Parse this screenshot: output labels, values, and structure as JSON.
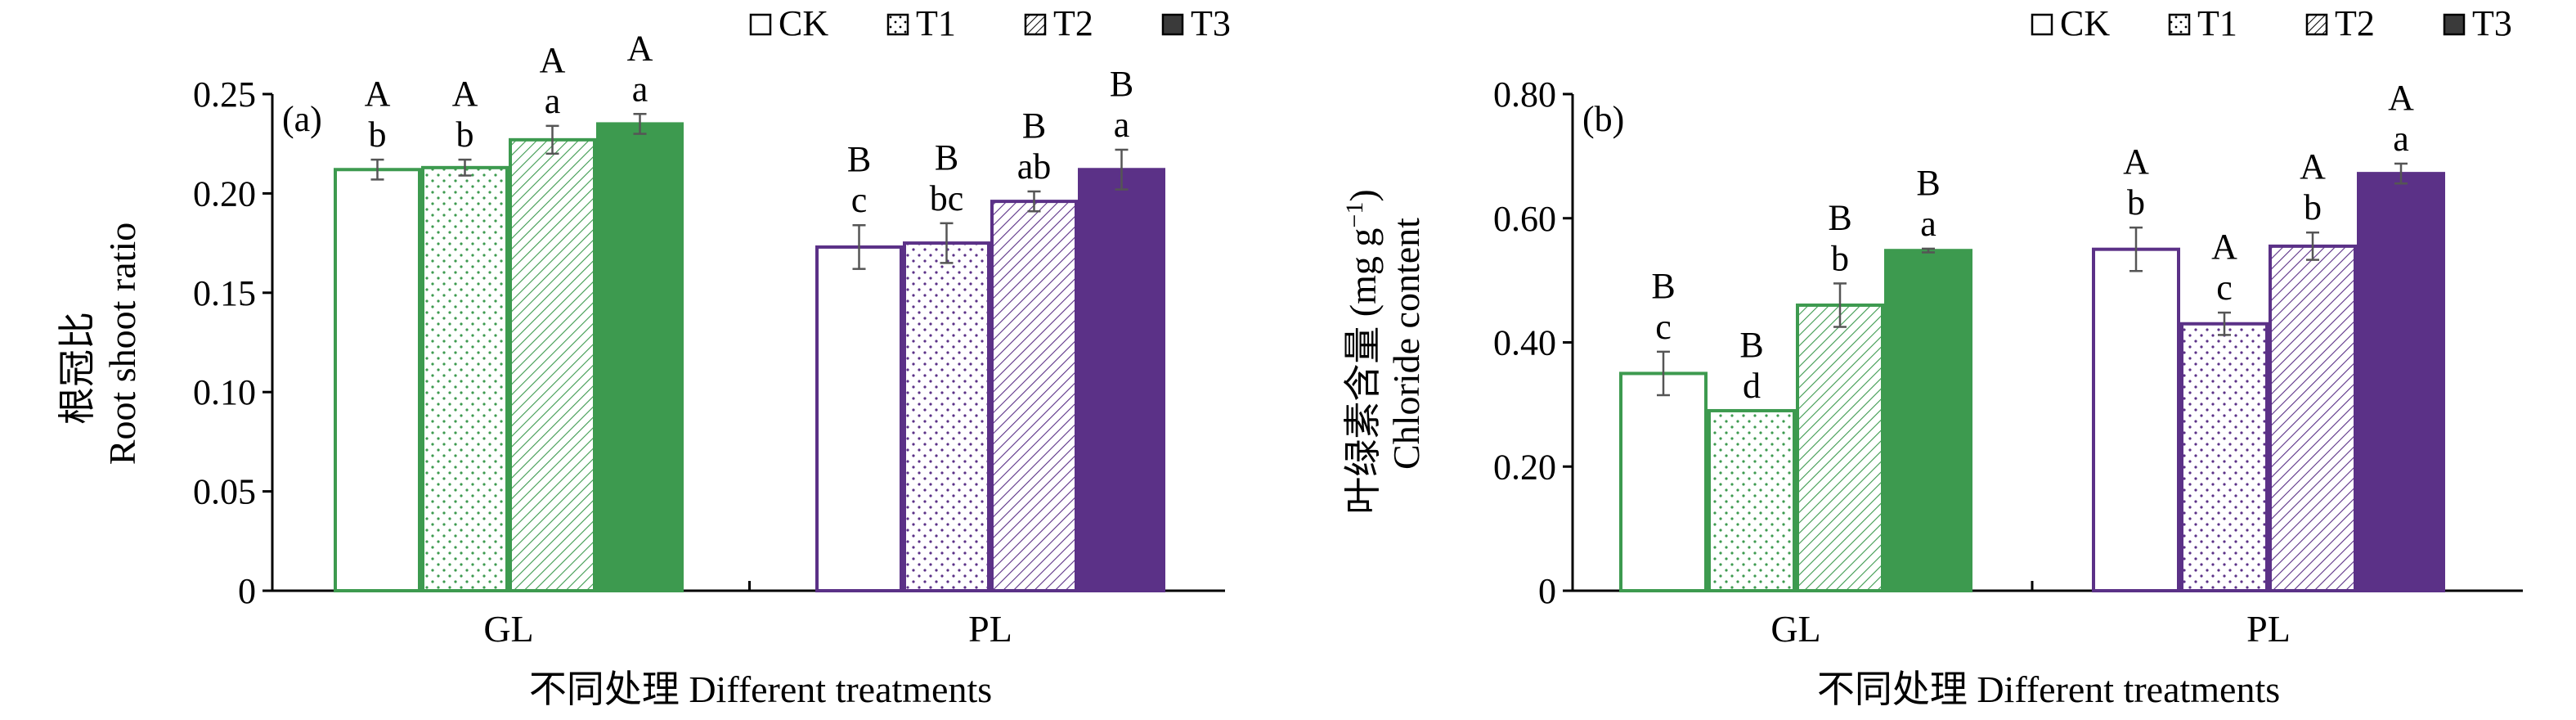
{
  "chart_data": [
    {
      "type": "bar",
      "panel_label": "(a)",
      "ylabel_cn": "根冠比",
      "ylabel": "Root shoot ratio",
      "xlabel": "不同处理 Different treatments",
      "ylim": [
        0,
        0.25
      ],
      "ytick_labels": [
        "0",
        "0.05",
        "0.10",
        "0.15",
        "0.20",
        "0.25"
      ],
      "categories": [
        "GL",
        "PL"
      ],
      "legend_position": "top-right",
      "series": [
        {
          "name": "CK",
          "values": [
            0.212,
            0.173
          ],
          "errors": [
            0.005,
            0.011
          ],
          "letters_upper": [
            "A",
            "B"
          ],
          "letters_lower": [
            "b",
            "c"
          ]
        },
        {
          "name": "T1",
          "values": [
            0.213,
            0.175
          ],
          "errors": [
            0.004,
            0.01
          ],
          "letters_upper": [
            "A",
            "B"
          ],
          "letters_lower": [
            "b",
            "bc"
          ]
        },
        {
          "name": "T2",
          "values": [
            0.227,
            0.196
          ],
          "errors": [
            0.007,
            0.005
          ],
          "letters_upper": [
            "A",
            "B"
          ],
          "letters_lower": [
            "a",
            "ab"
          ]
        },
        {
          "name": "T3",
          "values": [
            0.235,
            0.212
          ],
          "errors": [
            0.005,
            0.01
          ],
          "letters_upper": [
            "A",
            "B"
          ],
          "letters_lower": [
            "a",
            "a"
          ]
        }
      ]
    },
    {
      "type": "bar",
      "panel_label": "(b)",
      "ylabel_cn": "叶绿素含量",
      "ylabel_unit": "(mg g",
      "ylabel_unit_sup": "−1",
      "ylabel_unit_end": ")",
      "ylabel": "Chloride content",
      "xlabel": "不同处理 Different treatments",
      "ylim": [
        0,
        0.8
      ],
      "ytick_labels": [
        "0",
        "0.20",
        "0.40",
        "0.60",
        "0.80"
      ],
      "categories": [
        "GL",
        "PL"
      ],
      "legend_position": "top-right",
      "series": [
        {
          "name": "CK",
          "values": [
            0.35,
            0.55
          ],
          "errors": [
            0.035,
            0.035
          ],
          "letters_upper": [
            "B",
            "A"
          ],
          "letters_lower": [
            "c",
            "b"
          ]
        },
        {
          "name": "T1",
          "values": [
            0.29,
            0.43
          ],
          "errors": [
            0.0,
            0.018
          ],
          "letters_upper": [
            "B",
            "A"
          ],
          "letters_lower": [
            "d",
            "c"
          ]
        },
        {
          "name": "T2",
          "values": [
            0.46,
            0.555
          ],
          "errors": [
            0.035,
            0.022
          ],
          "letters_upper": [
            "B",
            "A"
          ],
          "letters_lower": [
            "b",
            "b"
          ]
        },
        {
          "name": "T3",
          "values": [
            0.548,
            0.672
          ],
          "errors": [
            0.003,
            0.016
          ],
          "letters_upper": [
            "B",
            "A"
          ],
          "letters_lower": [
            "a",
            "a"
          ]
        }
      ]
    }
  ],
  "colors": {
    "GL": "#3d9a4f",
    "PL": "#5b3187",
    "axis": "#000000",
    "error_bar": "#555555"
  }
}
